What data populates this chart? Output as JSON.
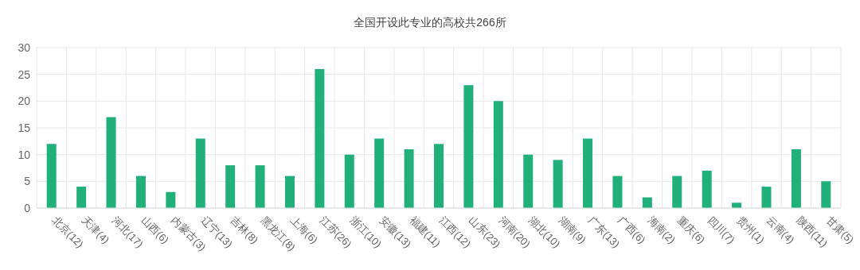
{
  "chart_data": {
    "type": "bar",
    "title": "全国开设此专业的高校共266所",
    "categories": [
      "北京(12)",
      "天津(4)",
      "河北(17)",
      "山西(6)",
      "内蒙古(3)",
      "辽宁(13)",
      "吉林(8)",
      "黑龙江(8)",
      "上海(6)",
      "江苏(26)",
      "浙江(10)",
      "安徽(13)",
      "福建(11)",
      "江西(12)",
      "山东(23)",
      "河南(20)",
      "湖北(10)",
      "湖南(9)",
      "广东(13)",
      "广西(6)",
      "海南(2)",
      "重庆(6)",
      "四川(7)",
      "贵州(1)",
      "云南(4)",
      "陕西(11)",
      "甘肃(5)"
    ],
    "values": [
      12,
      4,
      17,
      6,
      3,
      13,
      8,
      8,
      6,
      26,
      10,
      13,
      11,
      12,
      23,
      20,
      10,
      9,
      13,
      6,
      2,
      6,
      7,
      1,
      4,
      11,
      5
    ],
    "color": "#22b07a",
    "ylim": [
      0,
      30
    ],
    "yticks": [
      0,
      5,
      10,
      15,
      20,
      25,
      30
    ],
    "grid": true
  }
}
